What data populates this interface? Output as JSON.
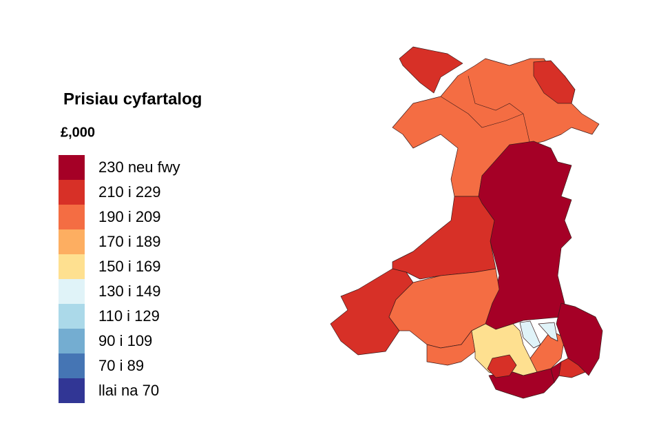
{
  "legend": {
    "title": "Prisiau cyfartalog",
    "unit": "£,000",
    "items": [
      {
        "label": "230 neu fwy",
        "color": "#a50026"
      },
      {
        "label": "210 i 229",
        "color": "#d73027"
      },
      {
        "label": "190 i 209",
        "color": "#f46d43"
      },
      {
        "label": "170 i 189",
        "color": "#fdae61"
      },
      {
        "label": "150 i 169",
        "color": "#fee090"
      },
      {
        "label": "130 i 149",
        "color": "#e0f3f8"
      },
      {
        "label": "110 i 129",
        "color": "#abd9e9"
      },
      {
        "label": "90 i 109",
        "color": "#74add1"
      },
      {
        "label": "70 i 89",
        "color": "#4575b4"
      },
      {
        "label": "llai na 70",
        "color": "#313695"
      }
    ]
  }
}
